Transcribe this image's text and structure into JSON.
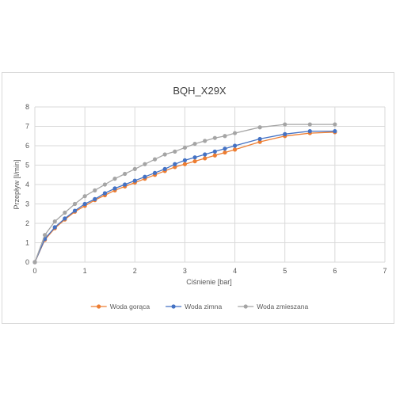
{
  "chart_data": {
    "type": "line",
    "title": "BQH_X29X",
    "xlabel": "Ciśnienie [bar]",
    "ylabel": "Przepływ [l/min]",
    "xlim": [
      0,
      7
    ],
    "ylim": [
      0,
      8
    ],
    "xticks": [
      "0",
      "1",
      "2",
      "3",
      "4",
      "5",
      "6",
      "7"
    ],
    "yticks": [
      "0",
      "1",
      "2",
      "3",
      "4",
      "5",
      "6",
      "7",
      "8"
    ],
    "grid": true,
    "legend_position": "bottom",
    "series": [
      {
        "name": "Woda gorąca",
        "color": "#ed7d31",
        "x": [
          0,
          0.2,
          0.4,
          0.6,
          0.8,
          1.0,
          1.2,
          1.4,
          1.6,
          1.8,
          2.0,
          2.2,
          2.4,
          2.6,
          2.8,
          3.0,
          3.2,
          3.4,
          3.6,
          3.8,
          4.0,
          4.5,
          5.0,
          5.5,
          6.0
        ],
        "y": [
          0,
          1.15,
          1.75,
          2.2,
          2.6,
          2.9,
          3.2,
          3.45,
          3.7,
          3.9,
          4.1,
          4.3,
          4.5,
          4.7,
          4.9,
          5.05,
          5.2,
          5.35,
          5.5,
          5.65,
          5.8,
          6.2,
          6.5,
          6.65,
          6.7
        ]
      },
      {
        "name": "Woda zimna",
        "color": "#4472c4",
        "x": [
          0,
          0.2,
          0.4,
          0.6,
          0.8,
          1.0,
          1.2,
          1.4,
          1.6,
          1.8,
          2.0,
          2.2,
          2.4,
          2.6,
          2.8,
          3.0,
          3.2,
          3.4,
          3.6,
          3.8,
          4.0,
          4.5,
          5.0,
          5.5,
          6.0
        ],
        "y": [
          0,
          1.2,
          1.8,
          2.25,
          2.65,
          3.0,
          3.25,
          3.55,
          3.8,
          4.0,
          4.2,
          4.4,
          4.6,
          4.8,
          5.05,
          5.25,
          5.4,
          5.55,
          5.7,
          5.85,
          6.0,
          6.35,
          6.6,
          6.75,
          6.75
        ]
      },
      {
        "name": "Woda zmieszana",
        "color": "#a5a5a5",
        "x": [
          0,
          0.2,
          0.4,
          0.6,
          0.8,
          1.0,
          1.2,
          1.4,
          1.6,
          1.8,
          2.0,
          2.2,
          2.4,
          2.6,
          2.8,
          3.0,
          3.2,
          3.4,
          3.6,
          3.8,
          4.0,
          4.5,
          5.0,
          5.5,
          6.0
        ],
        "y": [
          0,
          1.4,
          2.1,
          2.55,
          3.0,
          3.4,
          3.7,
          4.0,
          4.3,
          4.55,
          4.8,
          5.05,
          5.3,
          5.55,
          5.7,
          5.9,
          6.1,
          6.25,
          6.4,
          6.5,
          6.65,
          6.95,
          7.1,
          7.1,
          7.1
        ]
      }
    ]
  }
}
